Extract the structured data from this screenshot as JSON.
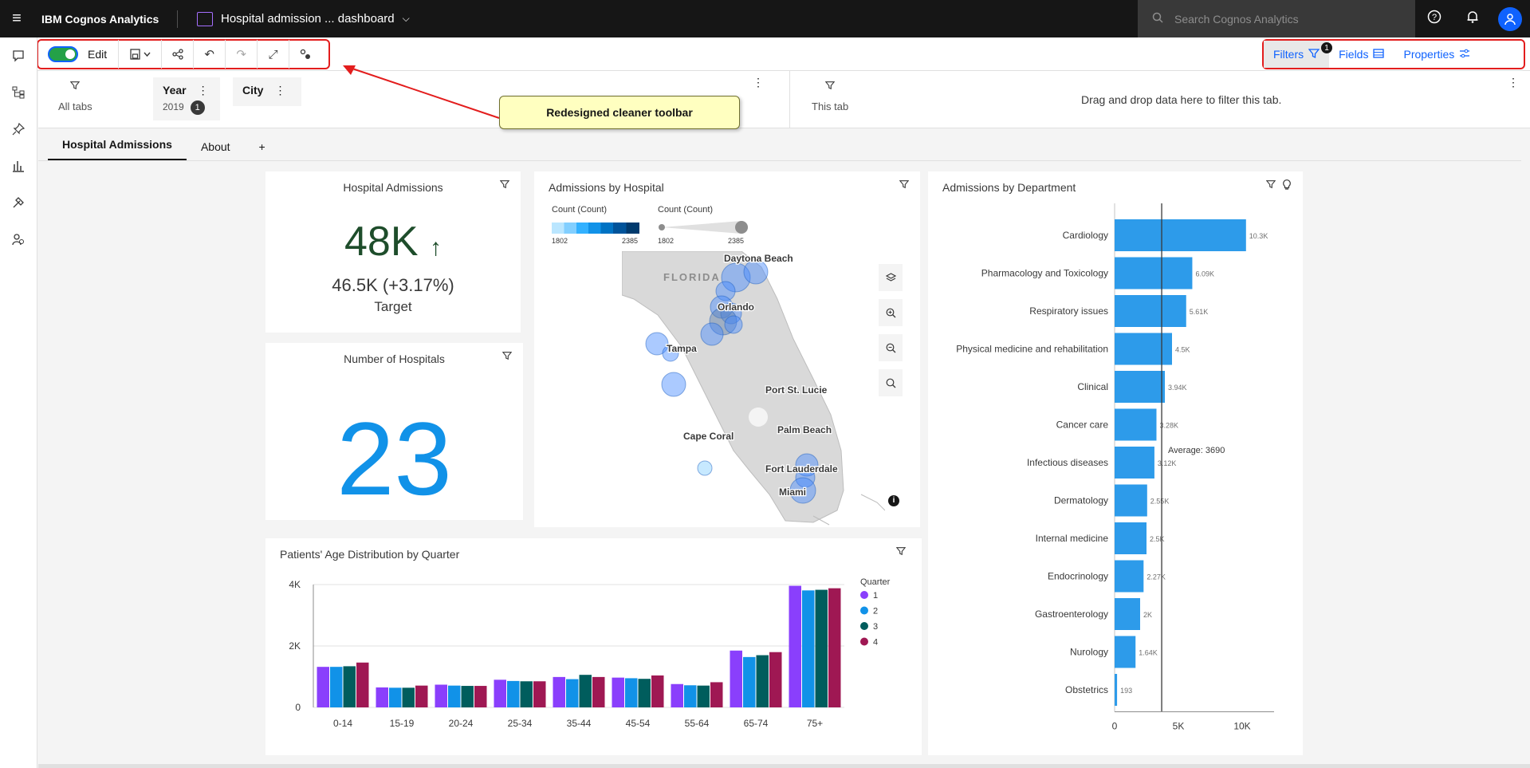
{
  "app": {
    "name": "IBM Cognos Analytics",
    "dashboard_title": "Hospital admission ... dashboard",
    "search_placeholder": "Search Cognos Analytics"
  },
  "toolbar": {
    "edit_label": "Edit",
    "filters_label": "Filters",
    "filters_badge": "1",
    "fields_label": "Fields",
    "properties_label": "Properties"
  },
  "filterbar": {
    "all_tabs": "All tabs",
    "year": {
      "label": "Year",
      "value": "2019",
      "count": "1"
    },
    "city": {
      "label": "City"
    },
    "this_tab": "This tab",
    "drop_hint": "Drag and drop data here to filter this tab."
  },
  "callout": "Redesigned cleaner toolbar",
  "tabs": [
    {
      "label": "Hospital Admissions"
    },
    {
      "label": "About"
    },
    {
      "label": "+"
    }
  ],
  "kpi_admissions": {
    "title": "Hospital Admissions",
    "value": "48K",
    "trend": "↑",
    "target_value": "46.5K (+3.17%)",
    "target_label": "Target"
  },
  "kpi_hospitals": {
    "title": "Number of Hospitals",
    "value": "23"
  },
  "map": {
    "title": "Admissions by Hospital",
    "legend_color": {
      "title": "Count (Count)",
      "min": "1802",
      "max": "2385"
    },
    "legend_size": {
      "title": "Count (Count)",
      "min": "1802",
      "max": "2385"
    },
    "labels": [
      "Daytona Beach",
      "FLORIDA",
      "Orlando",
      "Tampa",
      "Port St. Lucie",
      "Palm Beach",
      "Cape Coral",
      "Fort Lauderdale",
      "Miami"
    ],
    "info_icon": "i"
  },
  "chart_data": [
    {
      "type": "bar",
      "title": "Admissions by Department",
      "orientation": "horizontal",
      "categories": [
        "Cardiology",
        "Pharmacology and Toxicology",
        "Respiratory issues",
        "Physical medicine and rehabilitation",
        "Clinical",
        "Cancer care",
        "Infectious diseases",
        "Dermatology",
        "Internal medicine",
        "Endocrinology",
        "Gastroenterology",
        "Nurology",
        "Obstetrics"
      ],
      "values": [
        10300,
        6090,
        5610,
        4500,
        3940,
        3280,
        3120,
        2550,
        2500,
        2270,
        2000,
        1640,
        193
      ],
      "value_labels": [
        "10.3K",
        "6.09K",
        "5.61K",
        "4.5K",
        "3.94K",
        "3.28K",
        "3.12K",
        "2.55K",
        "2.5K",
        "2.27K",
        "2K",
        "1.64K",
        "193"
      ],
      "xticks": [
        "0",
        "5K",
        "10K"
      ],
      "xlim": [
        0,
        12500
      ],
      "reference_line": {
        "label": "Average: 3690",
        "value": 3690
      }
    },
    {
      "type": "bar",
      "title": "Patients' Age Distribution by Quarter",
      "categories": [
        "0-14",
        "15-19",
        "20-24",
        "25-34",
        "35-44",
        "45-54",
        "55-64",
        "65-74",
        "75+"
      ],
      "legend_title": "Quarter",
      "series": [
        {
          "name": "1",
          "color": "#8a3ffc",
          "values": [
            1320,
            650,
            740,
            900,
            990,
            970,
            760,
            1850,
            3960
          ]
        },
        {
          "name": "2",
          "color": "#1192e8",
          "values": [
            1320,
            640,
            710,
            860,
            920,
            950,
            720,
            1640,
            3810
          ]
        },
        {
          "name": "3",
          "color": "#005d5d",
          "values": [
            1340,
            640,
            700,
            850,
            1060,
            930,
            710,
            1700,
            3830
          ]
        },
        {
          "name": "4",
          "color": "#9f1853",
          "values": [
            1460,
            710,
            700,
            850,
            990,
            1040,
            820,
            1800,
            3880
          ]
        }
      ],
      "yticks": [
        "4K",
        "2K",
        "0"
      ],
      "ylim": [
        0,
        4000
      ]
    }
  ]
}
